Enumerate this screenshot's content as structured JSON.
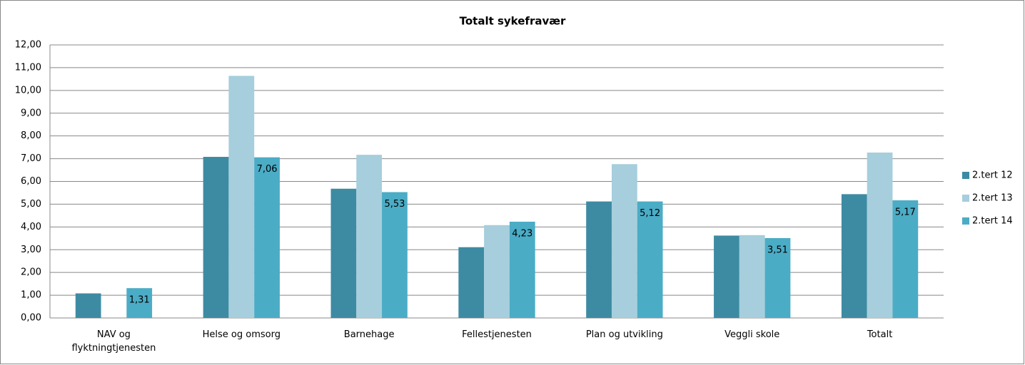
{
  "chart_data": {
    "type": "bar",
    "title": "Totalt sykefravær",
    "categories": [
      "NAV og flyktningtjenesten",
      "Helse og omsorg",
      "Barnehage",
      "Fellestjenesten",
      "Plan og utvikling",
      "Veggli skole",
      "Totalt"
    ],
    "series": [
      {
        "name": "2.tert 12",
        "color": "#3d8ba3",
        "values": [
          1.08,
          7.08,
          5.68,
          3.11,
          5.12,
          3.62,
          5.44
        ]
      },
      {
        "name": "2.tert 13",
        "color": "#a6cedc",
        "values": [
          null,
          10.64,
          7.17,
          4.08,
          6.76,
          3.64,
          7.27
        ]
      },
      {
        "name": "2.tert 14",
        "color": "#4bacc6",
        "values": [
          1.31,
          7.06,
          5.53,
          4.23,
          5.12,
          3.51,
          5.17
        ],
        "value_labels": [
          "1,31",
          "7,06",
          "5,53",
          "4,23",
          "5,12",
          "3,51",
          "5,17"
        ]
      }
    ],
    "ylim": [
      0,
      12
    ],
    "yticks": [
      {
        "value": 0,
        "label": "0,00"
      },
      {
        "value": 1,
        "label": "1,00"
      },
      {
        "value": 2,
        "label": "2,00"
      },
      {
        "value": 3,
        "label": "3,00"
      },
      {
        "value": 4,
        "label": "4,00"
      },
      {
        "value": 5,
        "label": "5,00"
      },
      {
        "value": 6,
        "label": "6,00"
      },
      {
        "value": 7,
        "label": "7,00"
      },
      {
        "value": 8,
        "label": "8,00"
      },
      {
        "value": 9,
        "label": "9,00"
      },
      {
        "value": 10,
        "label": "10,00"
      },
      {
        "value": 11,
        "label": "11,00"
      },
      {
        "value": 12,
        "label": "12,00"
      }
    ],
    "grid": true,
    "legend": "right"
  }
}
